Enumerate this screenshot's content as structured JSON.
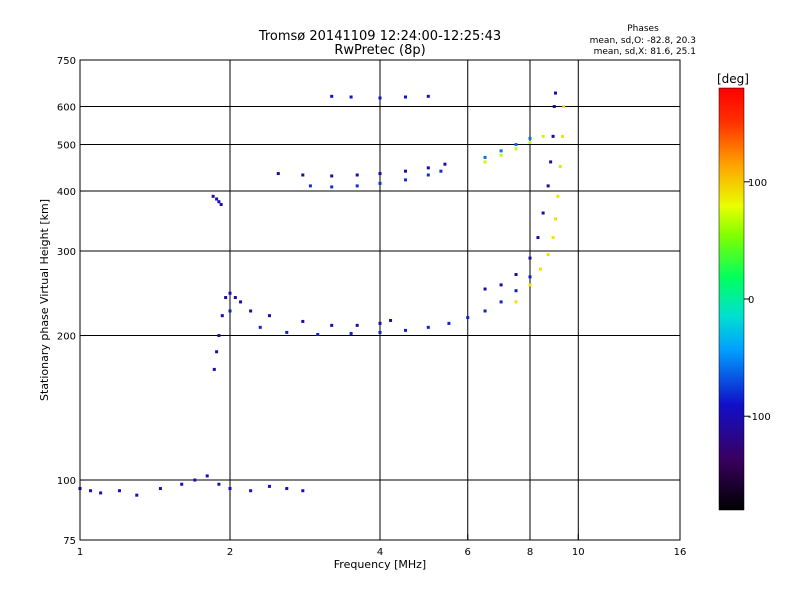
{
  "chart_data": {
    "type": "scatter",
    "title": "Tromsø 20141109 12:24:00-12:25:43",
    "subtitle": "RwPretec (8p)",
    "stats": {
      "heading": "Phases",
      "line_o": "mean, sd,O: -82.8, 20.3",
      "line_x": "mean, sd,X: 81.6, 25.1"
    },
    "xlabel": "Frequency [MHz]",
    "ylabel": "Stationary phase Virtual Height [km]",
    "x_scale": "log",
    "y_scale": "log",
    "xlim": [
      1,
      16
    ],
    "ylim": [
      75,
      750
    ],
    "x_ticks": [
      {
        "value": 1,
        "label": "1"
      },
      {
        "value": 2,
        "label": "2"
      },
      {
        "value": 4,
        "label": "4"
      },
      {
        "value": 6,
        "label": "6"
      },
      {
        "value": 8,
        "label": "8"
      },
      {
        "value": 10,
        "label": "10"
      },
      {
        "value": 16,
        "label": "16"
      }
    ],
    "y_ticks": [
      {
        "value": 75,
        "label": "75"
      },
      {
        "value": 100,
        "label": "100"
      },
      {
        "value": 200,
        "label": "200"
      },
      {
        "value": 300,
        "label": "300"
      },
      {
        "value": 400,
        "label": "400"
      },
      {
        "value": 500,
        "label": "500"
      },
      {
        "value": 600,
        "label": "600"
      },
      {
        "value": 750,
        "label": "750"
      }
    ],
    "x_gridlines": [
      2,
      4,
      6,
      8,
      10
    ],
    "y_gridlines": [
      100,
      200,
      300,
      400,
      500,
      600
    ],
    "grid": true,
    "colorbar": {
      "label": "[deg]",
      "range": [
        -180,
        180
      ],
      "ticks": [
        {
          "value": 100,
          "label": "100"
        },
        {
          "value": 0,
          "label": "0"
        },
        {
          "value": -100,
          "label": "-100"
        }
      ],
      "placement": "right"
    },
    "traces": [
      {
        "phase": -95,
        "points": [
          [
            1.0,
            96
          ],
          [
            1.05,
            95
          ],
          [
            1.1,
            94
          ],
          [
            1.2,
            95
          ],
          [
            1.3,
            93
          ],
          [
            1.45,
            96
          ],
          [
            1.6,
            98
          ],
          [
            1.7,
            100
          ],
          [
            1.8,
            102
          ],
          [
            1.9,
            98
          ],
          [
            2.0,
            96
          ],
          [
            2.2,
            95
          ],
          [
            2.4,
            97
          ],
          [
            2.6,
            96
          ],
          [
            2.8,
            95
          ]
        ]
      },
      {
        "phase": -100,
        "points": [
          [
            1.85,
            390
          ],
          [
            1.88,
            385
          ],
          [
            1.9,
            380
          ],
          [
            1.92,
            375
          ]
        ]
      },
      {
        "phase": -105,
        "points": [
          [
            1.86,
            170
          ],
          [
            1.88,
            185
          ],
          [
            1.9,
            200
          ],
          [
            1.93,
            220
          ],
          [
            1.96,
            240
          ],
          [
            2.0,
            245
          ],
          [
            2.05,
            240
          ],
          [
            2.1,
            235
          ],
          [
            2.2,
            225
          ],
          [
            2.4,
            220
          ],
          [
            2.8,
            214
          ],
          [
            3.2,
            210
          ],
          [
            3.6,
            210
          ],
          [
            4.0,
            212
          ],
          [
            4.2,
            215
          ]
        ]
      },
      {
        "phase": -85,
        "points": [
          [
            2.0,
            225
          ],
          [
            2.3,
            208
          ],
          [
            2.6,
            203
          ],
          [
            3.0,
            201
          ],
          [
            3.5,
            202
          ],
          [
            4.0,
            203
          ],
          [
            4.5,
            205
          ],
          [
            5.0,
            208
          ],
          [
            5.5,
            212
          ],
          [
            6.0,
            218
          ],
          [
            6.5,
            225
          ],
          [
            7.0,
            235
          ],
          [
            7.5,
            248
          ],
          [
            8.0,
            265
          ]
        ]
      },
      {
        "phase": -110,
        "points": [
          [
            2.5,
            435
          ],
          [
            2.8,
            432
          ],
          [
            3.2,
            430
          ],
          [
            3.6,
            432
          ],
          [
            4.0,
            435
          ],
          [
            4.5,
            440
          ],
          [
            5.0,
            447
          ],
          [
            5.4,
            455
          ]
        ]
      },
      {
        "phase": -80,
        "points": [
          [
            2.9,
            410
          ],
          [
            3.2,
            408
          ],
          [
            3.6,
            410
          ],
          [
            4.0,
            415
          ],
          [
            4.5,
            422
          ],
          [
            5.0,
            432
          ],
          [
            5.3,
            440
          ]
        ]
      },
      {
        "phase": -90,
        "points": [
          [
            3.2,
            630
          ],
          [
            3.5,
            628
          ],
          [
            4.0,
            625
          ],
          [
            4.5,
            628
          ],
          [
            5.0,
            630
          ]
        ]
      },
      {
        "phase": -110,
        "points": [
          [
            6.5,
            250
          ],
          [
            7.0,
            255
          ],
          [
            7.5,
            268
          ],
          [
            8.0,
            290
          ],
          [
            8.3,
            320
          ],
          [
            8.5,
            360
          ],
          [
            8.7,
            410
          ],
          [
            8.8,
            460
          ],
          [
            8.9,
            520
          ],
          [
            8.95,
            600
          ],
          [
            9.0,
            640
          ]
        ]
      },
      {
        "phase": 90,
        "points": [
          [
            7.5,
            235
          ],
          [
            8.0,
            255
          ],
          [
            8.4,
            275
          ],
          [
            8.7,
            295
          ],
          [
            8.9,
            320
          ],
          [
            9.0,
            350
          ],
          [
            9.1,
            390
          ],
          [
            9.2,
            450
          ],
          [
            9.3,
            520
          ],
          [
            9.35,
            600
          ]
        ]
      },
      {
        "phase": 70,
        "points": [
          [
            6.5,
            460
          ],
          [
            7.0,
            475
          ],
          [
            7.5,
            490
          ],
          [
            8.0,
            505
          ],
          [
            8.5,
            520
          ]
        ]
      },
      {
        "phase": -60,
        "points": [
          [
            6.5,
            470
          ],
          [
            7.0,
            485
          ],
          [
            7.5,
            500
          ],
          [
            8.0,
            515
          ]
        ]
      }
    ]
  }
}
